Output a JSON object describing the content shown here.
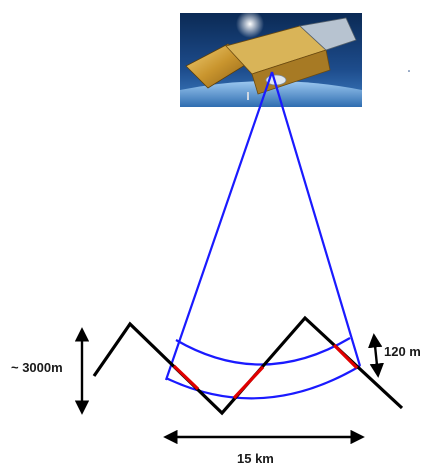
{
  "labels": {
    "height_label": "~ 3000m",
    "thickness_label": "120 m",
    "width_label": "15 km"
  },
  "colors": {
    "beam": "#1a1aff",
    "terrain": "#000000",
    "intersection": "#e00000",
    "arrows": "#000000"
  },
  "icons": {
    "satellite": "satellite-icon"
  }
}
